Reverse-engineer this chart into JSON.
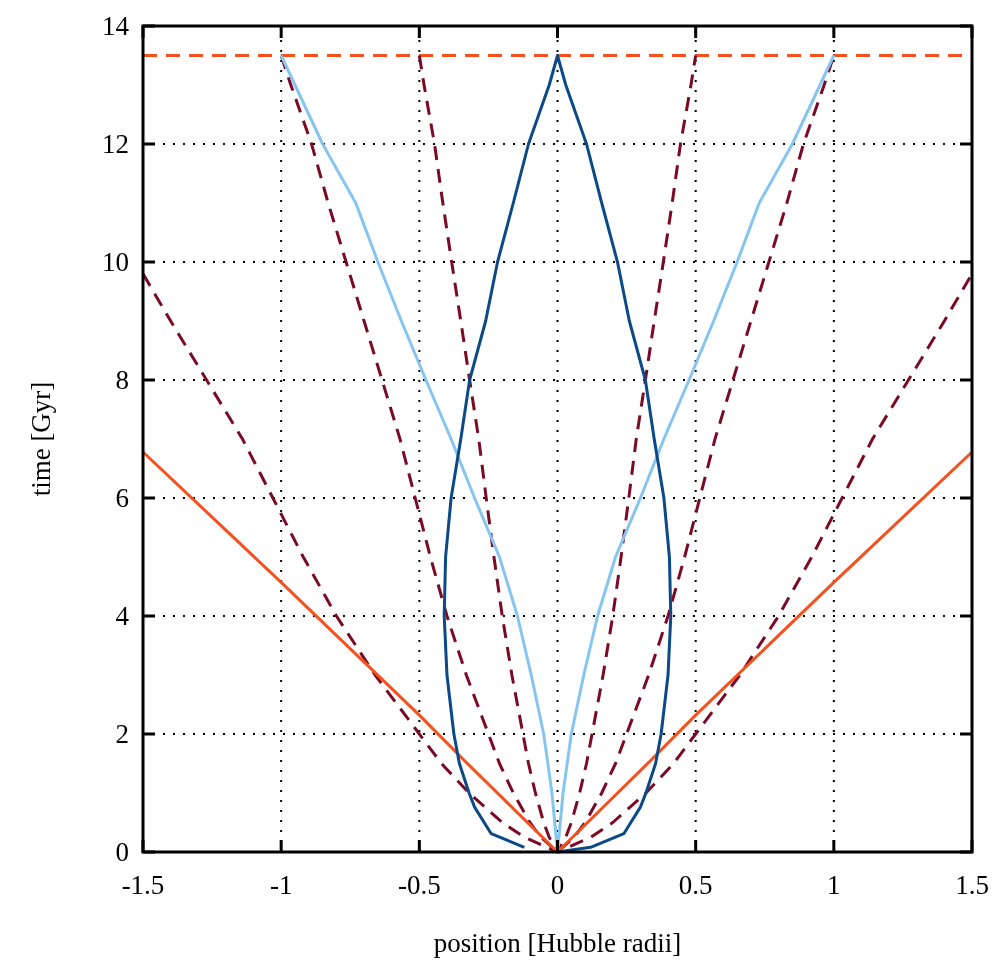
{
  "chart_data": {
    "type": "line",
    "xlabel": "position [Hubble radii]",
    "ylabel": "time [Gyr]",
    "xlim": [
      -1.5,
      1.5
    ],
    "ylim": [
      0,
      14
    ],
    "xticks": [
      -1.5,
      -1,
      -0.5,
      0,
      0.5,
      1,
      1.5
    ],
    "yticks": [
      0,
      2,
      4,
      6,
      8,
      10,
      12,
      14
    ],
    "grid": true,
    "ref_lines": [
      {
        "axis": "y",
        "value": 13.5,
        "color": "#f4511e",
        "line_style": "dashed"
      }
    ],
    "series": [
      {
        "color": "#7a0a26",
        "line_style": "dashed",
        "x": [
          -1.5,
          -1.4,
          -1.27,
          -1.14,
          -1.03,
          -0.92,
          -0.8,
          -0.66,
          -0.5,
          -0.42,
          -0.32,
          -0.2,
          -0.12,
          0,
          0.12,
          0.2,
          0.32,
          0.42,
          0.5,
          0.66,
          0.8,
          0.92,
          1.03,
          1.14,
          1.27,
          1.4,
          1.5
        ],
        "values": [
          9.8,
          9,
          8,
          7,
          6,
          5,
          4,
          3,
          2,
          1.5,
          1,
          0.5,
          0.25,
          0,
          0.25,
          0.5,
          1,
          1.5,
          2,
          3,
          4,
          5,
          6,
          7,
          8,
          9,
          9.8
        ]
      },
      {
        "color": "#7a0a26",
        "line_style": "dashed",
        "x": [
          -1,
          -0.965,
          -0.89,
          -0.83,
          -0.765,
          -0.7,
          -0.635,
          -0.57,
          -0.515,
          -0.46,
          -0.4,
          -0.33,
          -0.25,
          -0.21,
          -0.16,
          -0.1,
          -0.06,
          0,
          0.06,
          0.1,
          0.16,
          0.21,
          0.25,
          0.33,
          0.4,
          0.46,
          0.515,
          0.57,
          0.635,
          0.7,
          0.765,
          0.83,
          0.89,
          0.965,
          1
        ],
        "values": [
          13.5,
          13,
          12,
          11,
          10,
          9,
          8,
          7,
          6,
          5,
          4,
          3,
          2,
          1.5,
          1,
          0.5,
          0.25,
          0,
          0.25,
          0.5,
          1,
          1.5,
          2,
          3,
          4,
          5,
          6,
          7,
          8,
          9,
          10,
          11,
          12,
          13,
          13.5
        ]
      },
      {
        "color": "#7a0a26",
        "line_style": "dashed",
        "x": [
          -0.5,
          -0.483,
          -0.445,
          -0.415,
          -0.383,
          -0.35,
          -0.318,
          -0.285,
          -0.258,
          -0.23,
          -0.2,
          -0.165,
          -0.125,
          -0.105,
          -0.08,
          -0.05,
          -0.03,
          0,
          0.03,
          0.05,
          0.08,
          0.105,
          0.125,
          0.165,
          0.2,
          0.23,
          0.258,
          0.285,
          0.318,
          0.35,
          0.383,
          0.415,
          0.445,
          0.483,
          0.5
        ],
        "values": [
          13.5,
          13,
          12,
          11,
          10,
          9,
          8,
          7,
          6,
          5,
          4,
          3,
          2,
          1.5,
          1,
          0.5,
          0.25,
          0,
          0.25,
          0.5,
          1,
          1.5,
          2,
          3,
          4,
          5,
          6,
          7,
          8,
          9,
          10,
          11,
          12,
          13,
          13.5
        ]
      },
      {
        "color": "#f4511e",
        "line_style": "solid",
        "x": [
          -1.5,
          -1,
          -0.5,
          -0.337,
          0,
          0.337,
          0.5,
          1,
          1.5
        ],
        "values": [
          6.78,
          4.57,
          2.32,
          1.55,
          0,
          1.55,
          2.32,
          4.57,
          6.78
        ]
      },
      {
        "color": "#86c5f0",
        "line_style": "solid",
        "x": [
          -1,
          -0.95,
          -0.85,
          -0.73,
          -0.65,
          -0.565,
          -0.476,
          -0.385,
          -0.3,
          -0.21,
          -0.145,
          -0.095,
          -0.05,
          -0.02,
          -0.01,
          0,
          0.01,
          0.02,
          0.05,
          0.095,
          0.145,
          0.21,
          0.3,
          0.385,
          0.476,
          0.565,
          0.65,
          0.73,
          0.85,
          0.95,
          1
        ],
        "values": [
          13.5,
          13,
          12,
          11,
          10,
          9,
          8,
          7,
          6,
          5,
          4,
          3,
          2,
          1,
          0.5,
          0,
          0.5,
          1,
          2,
          3,
          4,
          5,
          6,
          7,
          8,
          9,
          10,
          11,
          12,
          13,
          13.5
        ]
      },
      {
        "color": "#0b4a87",
        "line_style": "solid",
        "x": [
          0,
          0.12,
          0.24,
          0.3,
          0.32,
          0.355,
          0.375,
          0.4,
          0.41,
          0.405,
          0.385,
          0.35,
          0.318,
          0.26,
          0.217,
          0.16,
          0.105,
          0.03,
          0,
          -0.03,
          -0.105,
          -0.16,
          -0.217,
          -0.26,
          -0.318,
          -0.35,
          -0.385,
          -0.405,
          -0.41,
          -0.4,
          -0.375,
          -0.355,
          -0.32,
          -0.3,
          -0.24,
          -0.12
        ],
        "values": [
          0,
          0.08,
          0.31,
          0.76,
          1,
          1.5,
          2,
          3,
          4,
          5,
          6,
          7,
          8,
          9,
          10,
          11,
          12,
          13,
          13.5,
          13,
          12,
          11,
          10,
          9,
          8,
          7,
          6,
          5,
          4,
          3,
          2,
          1.5,
          1,
          0.76,
          0.31,
          0.08
        ]
      }
    ]
  }
}
